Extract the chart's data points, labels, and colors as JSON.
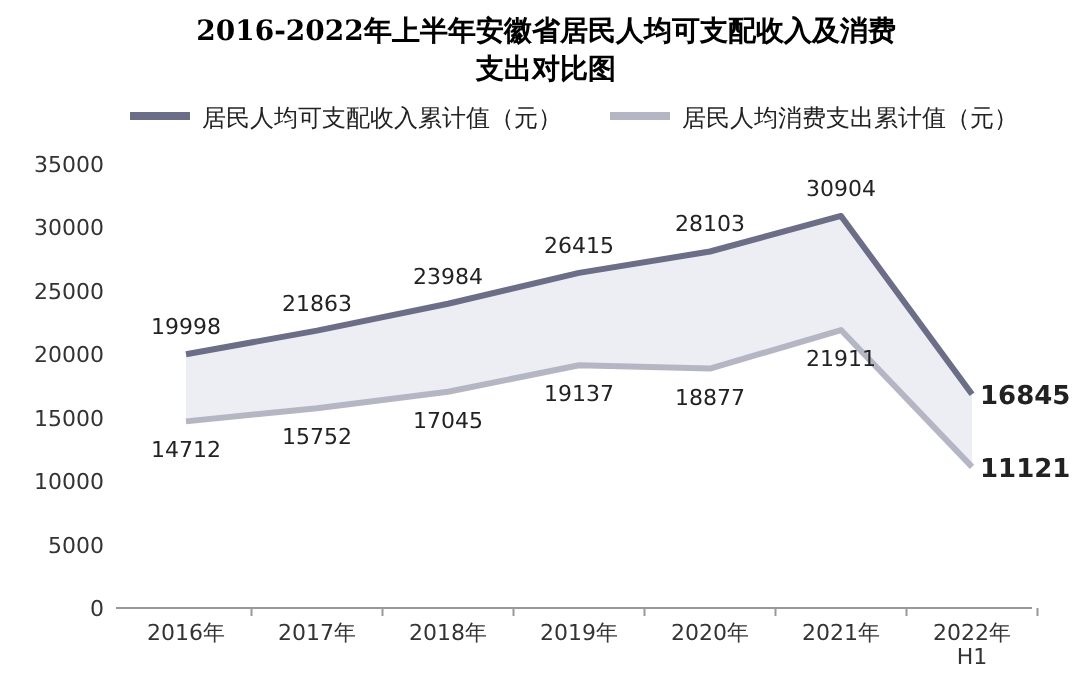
{
  "chart_data": {
    "type": "line",
    "title": "2016-2022年上半年安徽省居民人均可支配收入及消费支出对比图",
    "categories": [
      "2016年",
      "2017年",
      "2018年",
      "2019年",
      "2020年",
      "2021年",
      "2022年H1"
    ],
    "series": [
      {
        "name": "居民人均可支配收入累计值（元）",
        "color": "#6b6e86",
        "values": [
          19998,
          21863,
          23984,
          26415,
          28103,
          30904,
          16845
        ],
        "lower": [
          14712,
          15752,
          17045,
          19137,
          18877,
          21911,
          11121
        ],
        "upper": [
          19998,
          21863,
          23984,
          26415,
          28103,
          30904,
          16845
        ]
      },
      {
        "name": "居民人均消费支出累计值（元）",
        "color": "#b4b6c4",
        "values": [
          14712,
          15752,
          17045,
          19137,
          18877,
          21911,
          11121
        ]
      }
    ],
    "ylim": [
      0,
      35000
    ],
    "yticks": [
      0,
      5000,
      10000,
      15000,
      20000,
      25000,
      30000,
      35000
    ],
    "data_labels": true,
    "legend": "top",
    "grid": false,
    "marker": "none",
    "line_style": "solid"
  }
}
